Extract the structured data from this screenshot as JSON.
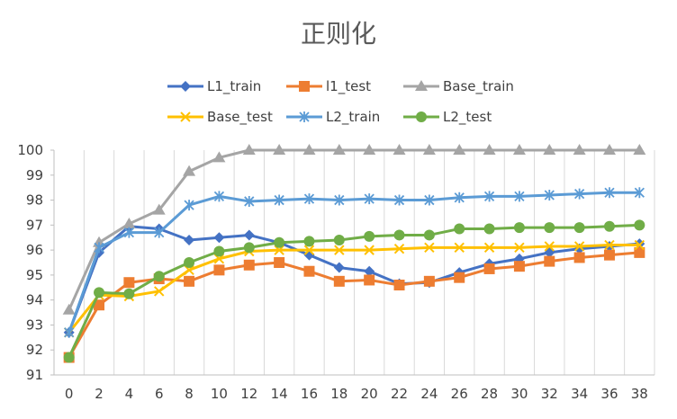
{
  "chart_data": {
    "type": "line",
    "title": "正则化",
    "xlabel": "",
    "ylabel": "",
    "x": [
      0,
      2,
      4,
      6,
      8,
      10,
      12,
      14,
      16,
      18,
      20,
      22,
      24,
      26,
      28,
      30,
      32,
      34,
      36,
      38
    ],
    "x_ticks": [
      "0",
      "2",
      "4",
      "6",
      "8",
      "10",
      "12",
      "14",
      "16",
      "18",
      "20",
      "22",
      "24",
      "26",
      "28",
      "30",
      "32",
      "34",
      "36",
      "38"
    ],
    "ylim": [
      91,
      100
    ],
    "y_ticks": [
      "91",
      "92",
      "93",
      "94",
      "95",
      "96",
      "97",
      "98",
      "99",
      "100"
    ],
    "grid": "vertical",
    "legend_position": "top",
    "series": [
      {
        "name": "L1_train",
        "color": "#4472C4",
        "marker": "diamond",
        "values": [
          92.7,
          95.9,
          96.95,
          96.85,
          96.4,
          96.5,
          96.6,
          96.3,
          95.8,
          95.3,
          95.15,
          94.65,
          94.7,
          95.1,
          95.45,
          95.65,
          95.9,
          96.05,
          96.15,
          96.25
        ]
      },
      {
        "name": "l1_test",
        "color": "#ED7D31",
        "marker": "square",
        "values": [
          91.7,
          93.8,
          94.7,
          94.85,
          94.75,
          95.2,
          95.4,
          95.5,
          95.15,
          94.75,
          94.8,
          94.6,
          94.75,
          94.9,
          95.25,
          95.35,
          95.55,
          95.7,
          95.8,
          95.9
        ]
      },
      {
        "name": "Base_train",
        "color": "#A5A5A5",
        "marker": "triangle",
        "values": [
          93.6,
          96.3,
          97.05,
          97.6,
          99.15,
          99.7,
          100,
          100,
          100,
          100,
          100,
          100,
          100,
          100,
          100,
          100,
          100,
          100,
          100,
          100
        ]
      },
      {
        "name": "Base_test",
        "color": "#FFC000",
        "marker": "x",
        "values": [
          92.7,
          94.2,
          94.15,
          94.35,
          95.2,
          95.65,
          95.95,
          96.0,
          96.0,
          96.0,
          96.0,
          96.05,
          96.1,
          96.1,
          96.1,
          96.1,
          96.15,
          96.15,
          96.2,
          96.2
        ]
      },
      {
        "name": "L2_train",
        "color": "#5B9BD5",
        "marker": "star",
        "values": [
          92.7,
          96.1,
          96.7,
          96.7,
          97.8,
          98.15,
          97.95,
          98.0,
          98.05,
          98.0,
          98.05,
          98.0,
          98.0,
          98.1,
          98.15,
          98.15,
          98.2,
          98.25,
          98.3,
          98.3
        ]
      },
      {
        "name": "L2_test",
        "color": "#70AD47",
        "marker": "circle",
        "values": [
          91.7,
          94.3,
          94.25,
          94.95,
          95.5,
          95.95,
          96.1,
          96.3,
          96.35,
          96.4,
          96.55,
          96.6,
          96.6,
          96.85,
          96.85,
          96.9,
          96.9,
          96.9,
          96.95,
          97.0
        ]
      }
    ]
  }
}
